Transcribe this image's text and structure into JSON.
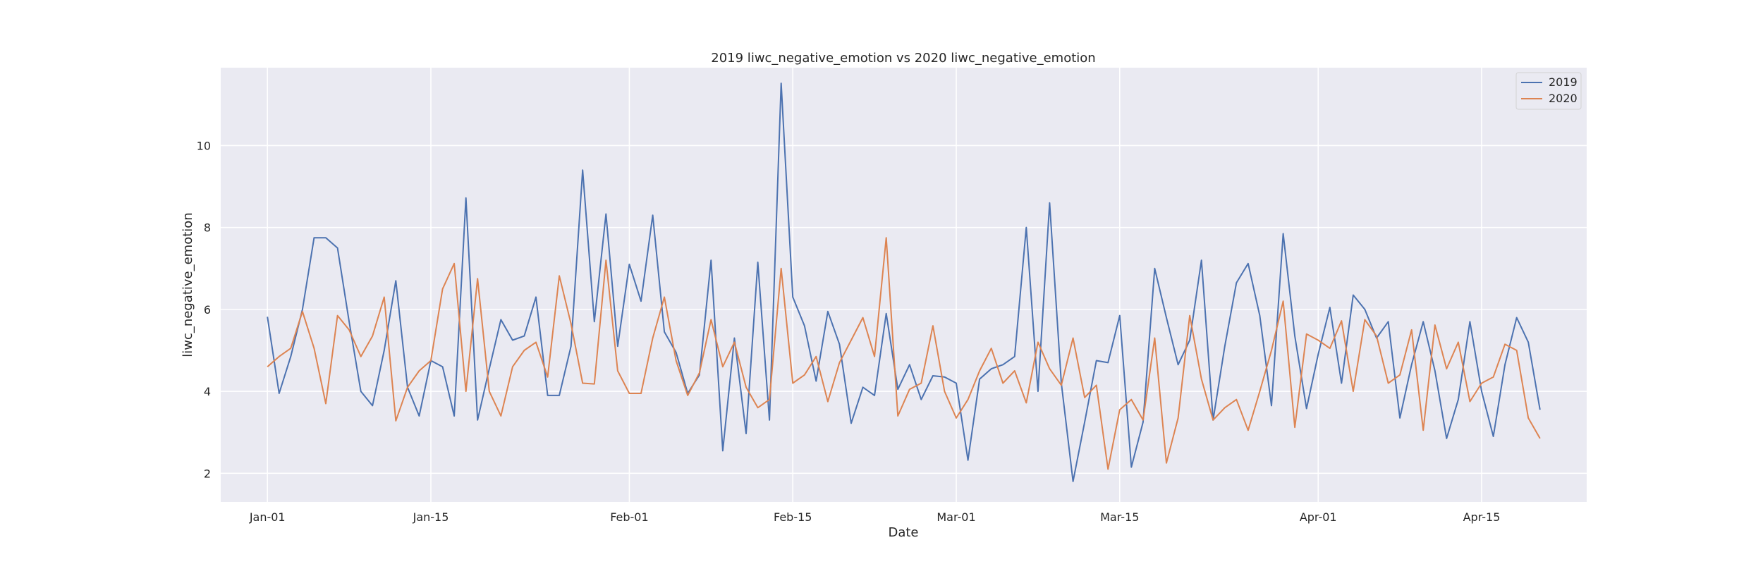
{
  "chart_data": {
    "type": "line",
    "title": "2019 liwc_negative_emotion vs 2020 liwc_negative_emotion",
    "xlabel": "Date",
    "ylabel": "liwc_negative_emotion",
    "x_start": "Jan-01",
    "x_ticks": [
      {
        "label": "Jan-01",
        "day": 0
      },
      {
        "label": "Jan-15",
        "day": 14
      },
      {
        "label": "Feb-01",
        "day": 31
      },
      {
        "label": "Feb-15",
        "day": 45
      },
      {
        "label": "Mar-01",
        "day": 59
      },
      {
        "label": "Mar-15",
        "day": 73
      },
      {
        "label": "Apr-01",
        "day": 90
      },
      {
        "label": "Apr-15",
        "day": 104
      }
    ],
    "y_ticks": [
      2,
      4,
      6,
      8,
      10
    ],
    "ylim": [
      1.3,
      11.9
    ],
    "grid": true,
    "legend_position": "top-right",
    "series": [
      {
        "name": "2019",
        "color": "#4c72b0",
        "values": [
          5.82,
          3.95,
          4.85,
          6.0,
          7.75,
          7.75,
          7.5,
          5.7,
          4.0,
          3.65,
          5.0,
          6.7,
          4.1,
          3.4,
          4.75,
          4.6,
          3.4,
          8.72,
          3.3,
          4.55,
          5.75,
          5.25,
          5.35,
          6.3,
          3.9,
          3.9,
          5.1,
          9.4,
          5.7,
          8.33,
          5.1,
          7.1,
          6.2,
          8.3,
          5.45,
          4.95,
          3.95,
          4.4,
          7.2,
          2.55,
          5.3,
          2.97,
          7.15,
          3.3,
          11.52,
          6.3,
          5.6,
          4.25,
          5.95,
          5.15,
          3.22,
          4.1,
          3.9,
          5.9,
          4.05,
          4.65,
          3.8,
          4.38,
          4.35,
          4.2,
          2.32,
          4.3,
          4.55,
          4.65,
          4.85,
          8.0,
          4.0,
          8.6,
          4.2,
          1.8,
          3.25,
          4.75,
          4.7,
          5.85,
          2.15,
          3.25,
          7.0,
          5.8,
          4.65,
          5.25,
          7.2,
          3.3,
          5.1,
          6.65,
          7.12,
          5.85,
          3.65,
          7.85,
          5.35,
          3.58,
          4.9,
          6.05,
          4.2,
          6.35,
          6.0,
          5.3,
          5.7,
          3.35,
          4.65,
          5.7,
          4.5,
          2.85,
          3.8,
          5.7,
          4.0,
          2.9,
          4.65,
          5.8,
          5.2,
          3.55
        ]
      },
      {
        "name": "2020",
        "color": "#dd8452",
        "values": [
          4.6,
          4.85,
          5.05,
          5.95,
          5.05,
          3.7,
          5.85,
          5.5,
          4.85,
          5.35,
          6.3,
          3.28,
          4.1,
          4.5,
          4.75,
          6.5,
          7.12,
          4.0,
          6.75,
          4.0,
          3.4,
          4.6,
          5.0,
          5.2,
          4.35,
          6.82,
          5.65,
          4.2,
          4.18,
          7.2,
          4.5,
          3.95,
          3.95,
          5.3,
          6.3,
          4.75,
          3.9,
          4.45,
          5.75,
          4.6,
          5.2,
          4.1,
          3.6,
          3.8,
          7.0,
          4.2,
          4.4,
          4.85,
          3.75,
          4.7,
          5.25,
          5.8,
          4.85,
          7.75,
          3.4,
          4.05,
          4.2,
          5.6,
          4.0,
          3.35,
          3.8,
          4.5,
          5.05,
          4.2,
          4.5,
          3.72,
          5.2,
          4.55,
          4.15,
          5.3,
          3.85,
          4.15,
          2.1,
          3.55,
          3.8,
          3.3,
          5.3,
          2.25,
          3.35,
          5.85,
          4.3,
          3.3,
          3.6,
          3.8,
          3.05,
          4.0,
          5.0,
          6.2,
          3.12,
          5.4,
          5.25,
          5.05,
          5.72,
          4.0,
          5.75,
          5.35,
          4.2,
          4.4,
          5.5,
          3.05,
          5.62,
          4.55,
          5.2,
          3.75,
          4.2,
          4.35,
          5.15,
          5.0,
          3.35,
          2.85
        ]
      }
    ]
  }
}
